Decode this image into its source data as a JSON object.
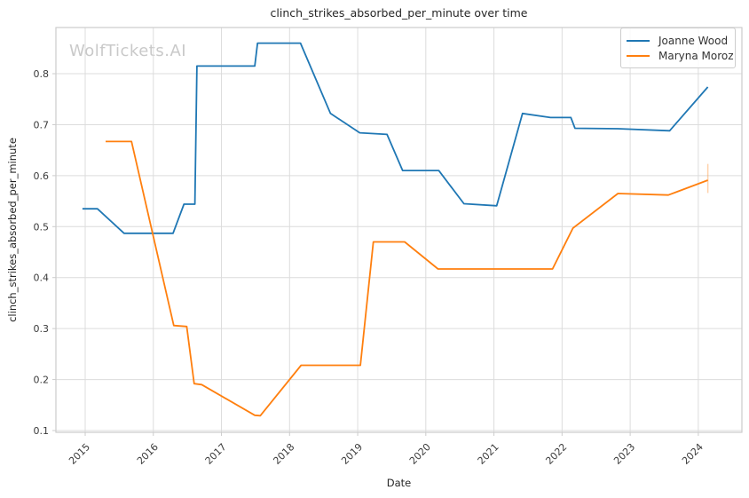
{
  "watermark": "WolfTickets.AI",
  "colors": {
    "background": "#ffffff",
    "grid": "#dcdcdc",
    "frame": "#cccccc",
    "title_text": "#262626",
    "tick_text": "#3a3a3a",
    "watermark": "#c9c9c9",
    "series_blue": "#1f77b4",
    "series_orange": "#ff7f0e"
  },
  "chart_data": {
    "type": "line",
    "title": "clinch_strikes_absorbed_per_minute over time",
    "xlabel": "Date",
    "ylabel": "clinch_strikes_absorbed_per_minute",
    "grid": true,
    "legend_position": "top-right",
    "xlim": [
      2014.57,
      2024.64
    ],
    "ylim": [
      0.0965,
      0.8906
    ],
    "xticks": [
      2015,
      2016,
      2017,
      2018,
      2019,
      2020,
      2021,
      2022,
      2023,
      2024
    ],
    "yticks": [
      0.1,
      0.2,
      0.3,
      0.4,
      0.5,
      0.6,
      0.7,
      0.8
    ],
    "series": [
      {
        "name": "Joanne Wood",
        "color": "#1f77b4",
        "points": [
          [
            2014.96,
            0.535
          ],
          [
            2015.18,
            0.535
          ],
          [
            2015.57,
            0.487
          ],
          [
            2016.29,
            0.487
          ],
          [
            2016.45,
            0.544
          ],
          [
            2016.61,
            0.544
          ],
          [
            2016.64,
            0.815
          ],
          [
            2017.49,
            0.815
          ],
          [
            2017.53,
            0.86
          ],
          [
            2018.16,
            0.86
          ],
          [
            2018.6,
            0.722
          ],
          [
            2019.03,
            0.684
          ],
          [
            2019.43,
            0.681
          ],
          [
            2019.66,
            0.61
          ],
          [
            2020.19,
            0.61
          ],
          [
            2020.56,
            0.545
          ],
          [
            2021.04,
            0.541
          ],
          [
            2021.42,
            0.722
          ],
          [
            2021.83,
            0.714
          ],
          [
            2022.13,
            0.714
          ],
          [
            2022.19,
            0.693
          ],
          [
            2022.82,
            0.692
          ],
          [
            2023.58,
            0.688
          ],
          [
            2024.14,
            0.774
          ]
        ]
      },
      {
        "name": "Maryna Moroz",
        "color": "#ff7f0e",
        "points": [
          [
            2015.3,
            0.667
          ],
          [
            2015.68,
            0.667
          ],
          [
            2016.3,
            0.306
          ],
          [
            2016.49,
            0.304
          ],
          [
            2016.6,
            0.192
          ],
          [
            2016.71,
            0.19
          ],
          [
            2017.49,
            0.13
          ],
          [
            2017.57,
            0.129
          ],
          [
            2018.17,
            0.228
          ],
          [
            2019.04,
            0.228
          ],
          [
            2019.23,
            0.47
          ],
          [
            2019.69,
            0.47
          ],
          [
            2020.18,
            0.417
          ],
          [
            2021.86,
            0.417
          ],
          [
            2022.16,
            0.497
          ],
          [
            2022.82,
            0.565
          ],
          [
            2023.56,
            0.562
          ],
          [
            2024.14,
            0.591
          ]
        ],
        "final_whisker": {
          "x": 2024.14,
          "lo": 0.566,
          "hi": 0.623
        }
      }
    ]
  }
}
